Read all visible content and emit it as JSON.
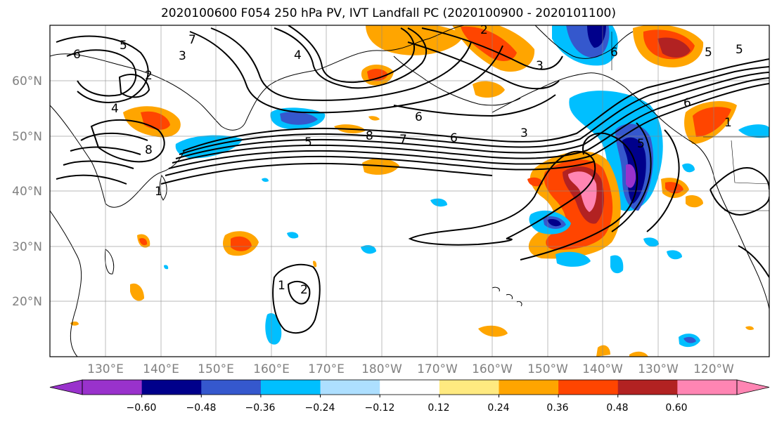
{
  "title": "2020100600 F054 250 hPa PV, IVT Landfall PC (2020100900 - 2020101100)",
  "map": {
    "lat_labels": [
      "60°N",
      "50°N",
      "40°N",
      "30°N",
      "20°N"
    ],
    "lon_labels": [
      "130°E",
      "140°E",
      "150°E",
      "160°E",
      "170°E",
      "180°W",
      "170°W",
      "160°W",
      "150°W",
      "140°W",
      "130°W",
      "120°W"
    ],
    "contour_labels": [
      "6",
      "5",
      "4",
      "3",
      "2",
      "8",
      "7",
      "8",
      "5",
      "7",
      "6",
      "3",
      "6",
      "1",
      "2",
      "1",
      "6",
      "5",
      "4",
      "3",
      "2",
      "1",
      "5",
      "6",
      "5"
    ]
  },
  "colorbar": {
    "ticks": [
      "−0.60",
      "−0.48",
      "−0.36",
      "−0.24",
      "−0.12",
      "0.12",
      "0.24",
      "0.36",
      "0.48",
      "0.60"
    ],
    "colors": [
      "#9932CC",
      "#00008B",
      "#3558CD",
      "#00BFFF",
      "#ADDFFF",
      "#FFFFFF",
      "#FFEA80",
      "#FFA500",
      "#FF4500",
      "#B22222",
      "#FF85B3"
    ]
  }
}
